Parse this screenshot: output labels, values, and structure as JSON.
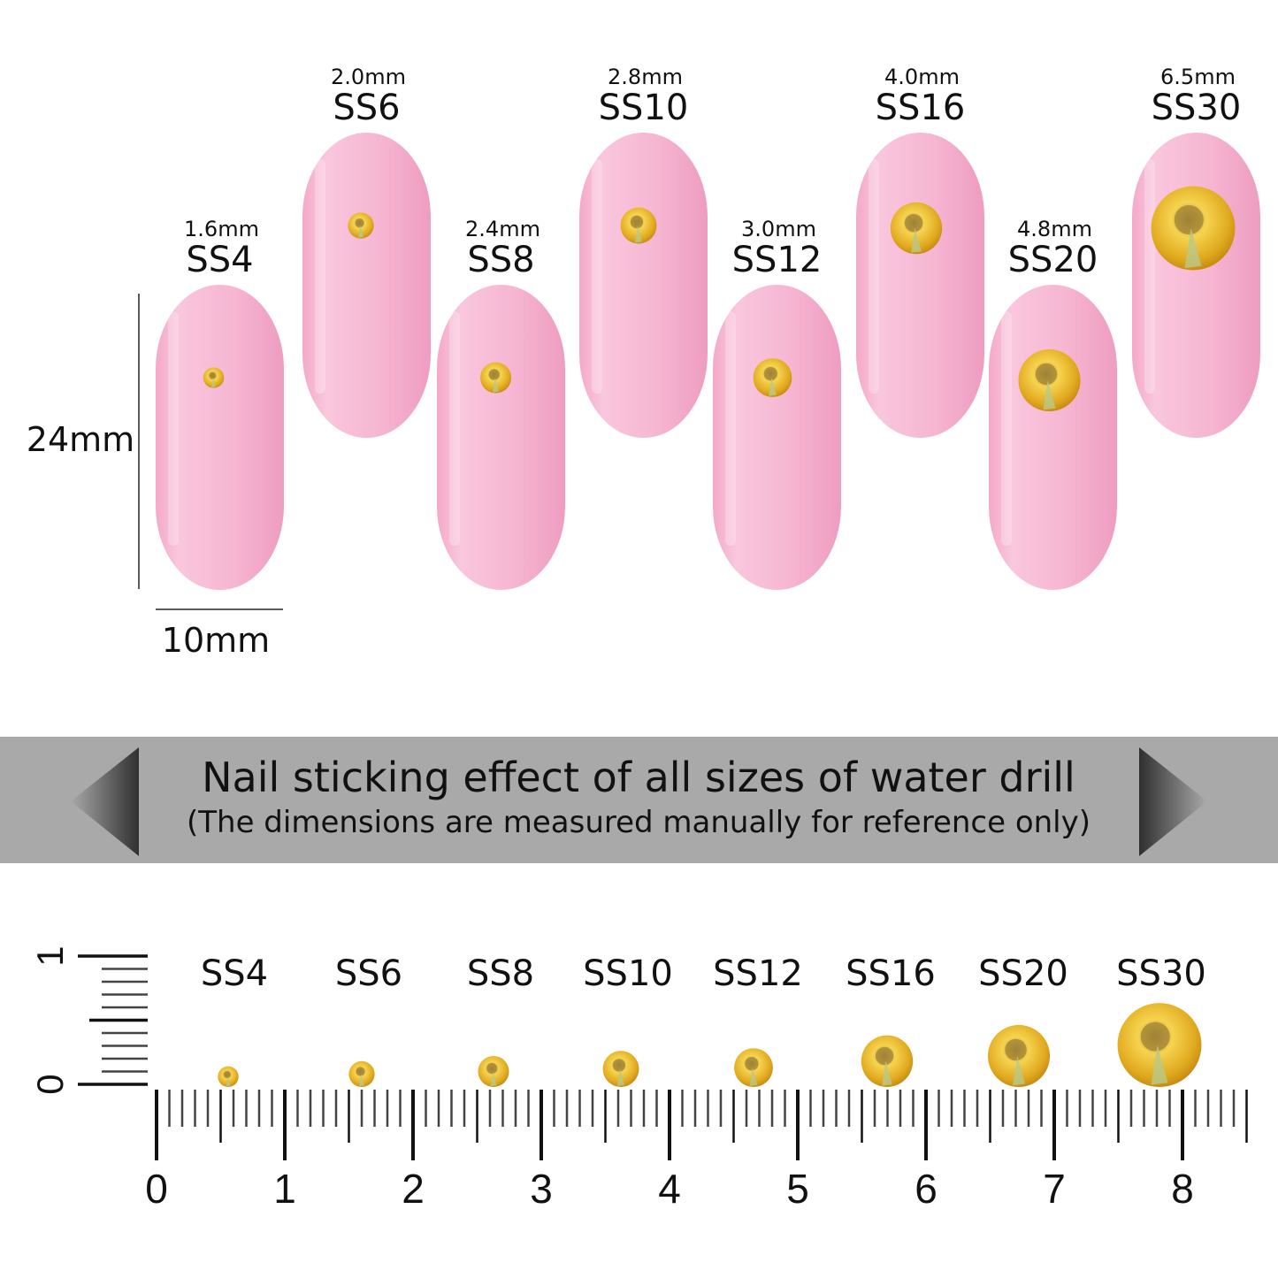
{
  "nails": [
    {
      "size": "SS4",
      "mm": "1.6mm",
      "diameter_mm": 1.6
    },
    {
      "size": "SS6",
      "mm": "2.0mm",
      "diameter_mm": 2.0
    },
    {
      "size": "SS8",
      "mm": "2.4mm",
      "diameter_mm": 2.4
    },
    {
      "size": "SS10",
      "mm": "2.8mm",
      "diameter_mm": 2.8
    },
    {
      "size": "SS12",
      "mm": "3.0mm",
      "diameter_mm": 3.0
    },
    {
      "size": "SS16",
      "mm": "4.0mm",
      "diameter_mm": 4.0
    },
    {
      "size": "SS20",
      "mm": "4.8mm",
      "diameter_mm": 4.8
    },
    {
      "size": "SS30",
      "mm": "6.5mm",
      "diameter_mm": 6.5
    }
  ],
  "dimensions": {
    "height": "24mm",
    "width": "10mm"
  },
  "banner": {
    "title": "Nail sticking effect of all sizes of water drill",
    "subtitle": "(The dimensions are measured manually for reference only)"
  },
  "ruler": {
    "horizontal_labels": [
      "0",
      "1",
      "2",
      "3",
      "4",
      "5",
      "6",
      "7",
      "8"
    ],
    "vertical_labels": [
      "0",
      "1"
    ]
  },
  "colors": {
    "nail": "#f5b3d0",
    "stone": "#e6b52a",
    "banner": "#a9a9a9"
  }
}
